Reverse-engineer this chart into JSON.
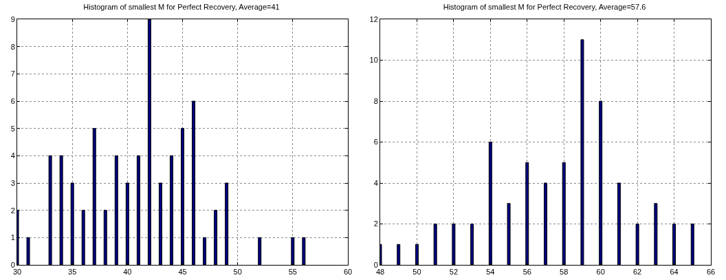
{
  "chart_data": [
    {
      "type": "bar",
      "title": "Histogram of smallest M for Perfect Recovery, Average=41",
      "x": [
        30,
        31,
        33,
        34,
        35,
        36,
        37,
        38,
        39,
        40,
        41,
        42,
        43,
        44,
        45,
        46,
        47,
        48,
        49,
        52,
        55,
        56
      ],
      "values": [
        2,
        1,
        4,
        4,
        3,
        2,
        5,
        2,
        4,
        3,
        4,
        9,
        3,
        4,
        5,
        6,
        1,
        2,
        3,
        1,
        1,
        1
      ],
      "color": "#000080",
      "xlim": [
        30,
        60
      ],
      "xticks": [
        30,
        35,
        40,
        45,
        50,
        55,
        60
      ],
      "ylim": [
        0,
        9
      ],
      "yticks": [
        0,
        1,
        2,
        3,
        4,
        5,
        6,
        7,
        8,
        9
      ],
      "grid": true
    },
    {
      "type": "bar",
      "title": "Histogram of smallest M for Perfect Recovery, Average=57.6",
      "x": [
        48,
        49,
        50,
        51,
        52,
        53,
        54,
        55,
        56,
        57,
        58,
        59,
        60,
        61,
        62,
        63,
        64,
        65
      ],
      "values": [
        1,
        1,
        1,
        2,
        2,
        2,
        6,
        3,
        5,
        4,
        5,
        11,
        8,
        4,
        2,
        3,
        2,
        2
      ],
      "color": "#000080",
      "xlim": [
        48,
        66
      ],
      "xticks": [
        48,
        50,
        52,
        54,
        56,
        58,
        60,
        62,
        64,
        66
      ],
      "ylim": [
        0,
        12
      ],
      "yticks": [
        0,
        2,
        4,
        6,
        8,
        10,
        12
      ],
      "grid": true
    }
  ]
}
